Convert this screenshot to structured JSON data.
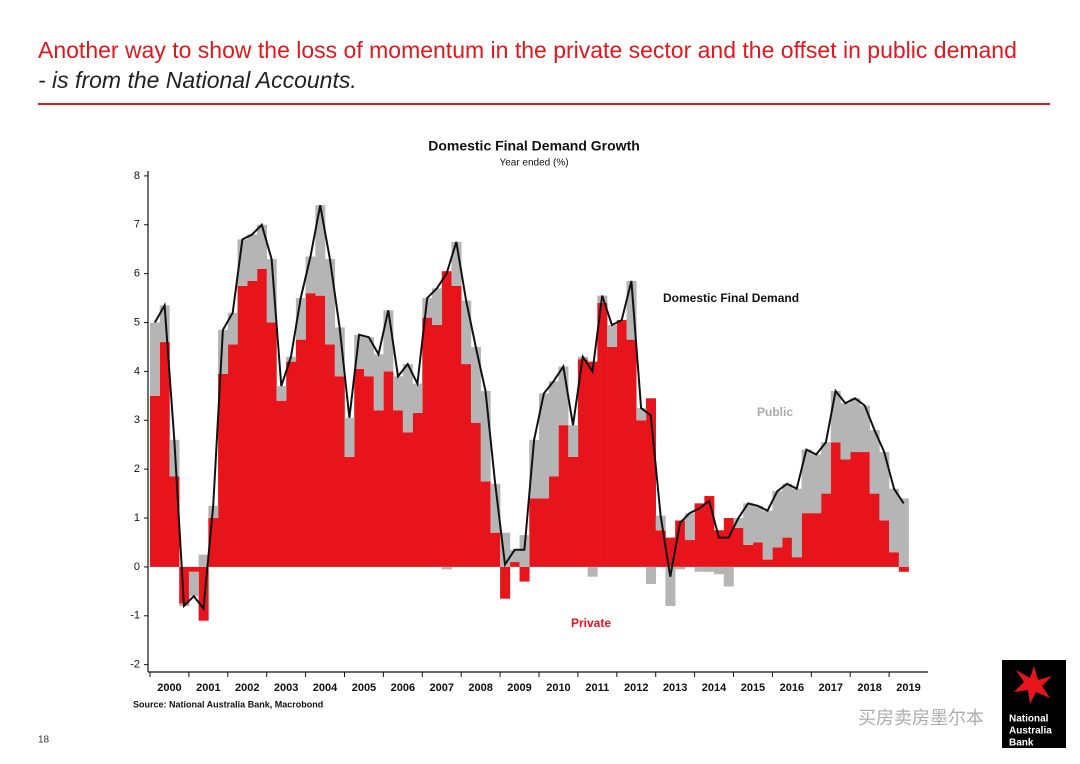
{
  "header": {
    "title": "Another way to show the loss of momentum in the private sector and the offset in public demand",
    "title_italic": "- is from the National Accounts."
  },
  "chart_data": {
    "type": "stacked_bar_line",
    "title": "Domestic Final Demand Growth",
    "subtitle": "Year ended (%)",
    "x_labels": [
      "2000",
      "2001",
      "2002",
      "2003",
      "2004",
      "2005",
      "2006",
      "2007",
      "2008",
      "2009",
      "2010",
      "2011",
      "2012",
      "2013",
      "2014",
      "2015",
      "2016",
      "2017",
      "2018",
      "2019"
    ],
    "ylim": [
      -2.15,
      8.1
    ],
    "yticks": [
      -2,
      -1,
      0,
      1,
      2,
      3,
      4,
      5,
      6,
      7,
      8
    ],
    "series": [
      {
        "name": "Private",
        "color": "#e8141b",
        "kind": "bar",
        "values": [
          3.5,
          4.6,
          1.85,
          -0.75,
          -0.1,
          -1.1,
          1.0,
          3.95,
          4.55,
          5.75,
          5.85,
          6.1,
          5.0,
          3.4,
          4.2,
          4.65,
          5.6,
          5.55,
          4.55,
          3.9,
          2.25,
          4.05,
          3.9,
          3.2,
          4.0,
          3.2,
          2.75,
          3.15,
          5.1,
          4.95,
          6.05,
          5.75,
          4.15,
          2.95,
          1.75,
          0.7,
          -0.65,
          0.1,
          -0.3,
          1.4,
          1.4,
          1.85,
          2.9,
          2.25,
          4.25,
          4.2,
          5.4,
          4.5,
          5.05,
          4.65,
          3.0,
          3.45,
          0.75,
          0.6,
          0.95,
          0.55,
          1.3,
          1.45,
          0.75,
          1.0,
          0.8,
          0.45,
          0.5,
          0.15,
          0.4,
          0.6,
          0.2,
          1.1,
          1.1,
          1.5,
          2.55,
          2.2,
          2.35,
          2.35,
          1.5,
          0.95,
          0.3,
          -0.1
        ]
      },
      {
        "name": "Public",
        "color": "#b5b5b5",
        "kind": "bar",
        "values": [
          1.5,
          0.75,
          0.75,
          -0.05,
          -0.5,
          0.25,
          0.25,
          0.9,
          0.65,
          0.95,
          0.95,
          0.9,
          1.3,
          0.3,
          0.1,
          0.85,
          0.75,
          1.85,
          1.75,
          1.0,
          0.8,
          0.7,
          0.8,
          1.15,
          1.25,
          0.7,
          1.4,
          0.6,
          0.4,
          0.75,
          -0.05,
          0.9,
          1.3,
          1.55,
          1.85,
          1.0,
          0.7,
          0.25,
          0.65,
          1.2,
          2.15,
          1.95,
          1.2,
          0.65,
          0.05,
          -0.2,
          0.15,
          0.45,
          0,
          1.2,
          0.25,
          -0.35,
          0.3,
          -0.8,
          -0.05,
          0.55,
          -0.1,
          -0.1,
          -0.15,
          -0.4,
          0.2,
          0.85,
          0.75,
          1.0,
          1.15,
          1.1,
          1.4,
          1.3,
          1.2,
          1.05,
          1.05,
          1.15,
          1.1,
          0.95,
          1.3,
          1.4,
          1.3,
          1.4
        ]
      },
      {
        "name": "Domestic Final Demand",
        "color": "#111111",
        "kind": "line",
        "values": [
          5.0,
          5.35,
          2.6,
          -0.8,
          -0.6,
          -0.85,
          1.25,
          4.85,
          5.2,
          6.7,
          6.8,
          7.0,
          6.3,
          3.7,
          4.3,
          5.5,
          6.35,
          7.4,
          6.3,
          4.9,
          3.05,
          4.75,
          4.7,
          4.35,
          5.25,
          3.9,
          4.15,
          3.75,
          5.5,
          5.7,
          6.0,
          6.65,
          5.45,
          4.5,
          3.6,
          1.7,
          0.05,
          0.35,
          0.35,
          2.6,
          3.55,
          3.8,
          4.1,
          2.9,
          4.3,
          4.0,
          5.55,
          4.95,
          5.05,
          5.85,
          3.25,
          3.1,
          1.05,
          -0.2,
          0.9,
          1.1,
          1.2,
          1.35,
          0.6,
          0.6,
          1.0,
          1.3,
          1.25,
          1.15,
          1.55,
          1.7,
          1.6,
          2.4,
          2.3,
          2.55,
          3.6,
          3.35,
          3.45,
          3.3,
          2.8,
          2.35,
          1.6,
          1.3
        ]
      }
    ],
    "source": "Source: National Australia Bank, Macrobond"
  },
  "footer": {
    "page_number": "18",
    "watermark": "买房卖房墨尔本",
    "logo": [
      "National",
      "Australia",
      "Bank"
    ]
  }
}
